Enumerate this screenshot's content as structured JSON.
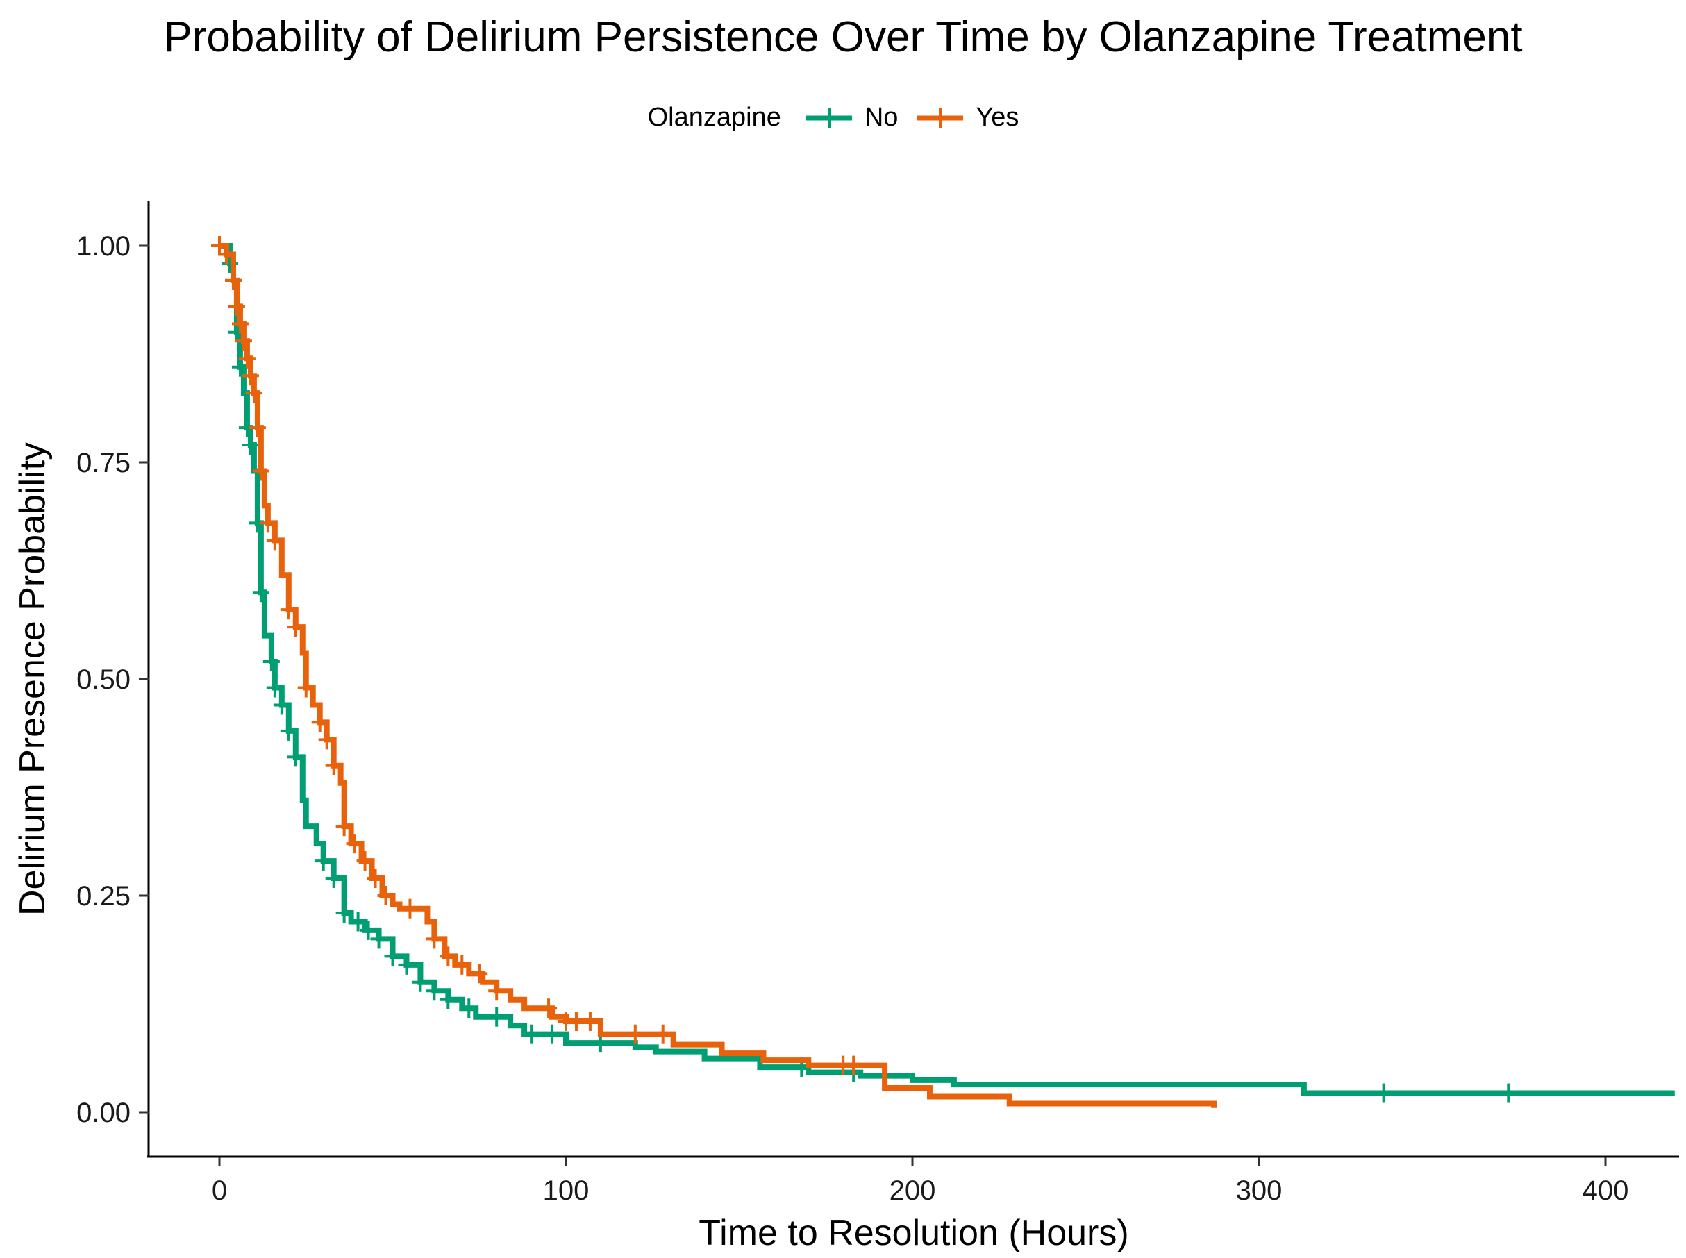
{
  "chart_data": {
    "type": "line",
    "subtype": "kaplan-meier step",
    "title": "Probability of Delirium Persistence Over Time by Olanzapine Treatment",
    "xlabel": "Time to Resolution (Hours)",
    "ylabel": "Delirium Presence Probability",
    "xlim": [
      -20,
      420
    ],
    "ylim": [
      -0.05,
      1.05
    ],
    "x_ticks": [
      0,
      100,
      200,
      300,
      400
    ],
    "x_tick_labels": [
      "0",
      "100",
      "200",
      "300",
      "400"
    ],
    "y_ticks": [
      0,
      0.25,
      0.5,
      0.75,
      1.0
    ],
    "y_tick_labels": [
      "0.00",
      "0.25",
      "0.50",
      "0.75",
      "1.00"
    ],
    "grid": false,
    "legend": {
      "title": "Olanzapine",
      "position": "top"
    },
    "series": [
      {
        "name": "No",
        "color": "#009E73",
        "steps": [
          [
            0,
            1.0
          ],
          [
            3,
            0.98
          ],
          [
            4,
            0.96
          ],
          [
            5,
            0.9
          ],
          [
            6,
            0.86
          ],
          [
            7,
            0.83
          ],
          [
            8,
            0.79
          ],
          [
            9,
            0.77
          ],
          [
            10,
            0.74
          ],
          [
            11,
            0.68
          ],
          [
            12,
            0.6
          ],
          [
            13,
            0.55
          ],
          [
            15,
            0.52
          ],
          [
            16,
            0.49
          ],
          [
            18,
            0.47
          ],
          [
            20,
            0.44
          ],
          [
            22,
            0.41
          ],
          [
            24,
            0.36
          ],
          [
            25,
            0.33
          ],
          [
            28,
            0.31
          ],
          [
            30,
            0.29
          ],
          [
            33,
            0.27
          ],
          [
            36,
            0.23
          ],
          [
            38,
            0.22
          ],
          [
            42,
            0.21
          ],
          [
            46,
            0.2
          ],
          [
            50,
            0.18
          ],
          [
            54,
            0.17
          ],
          [
            58,
            0.15
          ],
          [
            62,
            0.14
          ],
          [
            66,
            0.13
          ],
          [
            70,
            0.12
          ],
          [
            74,
            0.11
          ],
          [
            84,
            0.1
          ],
          [
            88,
            0.09
          ],
          [
            100,
            0.08
          ],
          [
            120,
            0.075
          ],
          [
            126,
            0.07
          ],
          [
            140,
            0.062
          ],
          [
            156,
            0.052
          ],
          [
            170,
            0.046
          ],
          [
            185,
            0.042
          ],
          [
            200,
            0.037
          ],
          [
            212,
            0.032
          ],
          [
            313,
            0.022
          ],
          [
            420,
            0.022
          ]
        ],
        "censor_times": [
          3,
          4,
          5,
          6,
          8,
          9,
          11,
          12,
          15,
          16,
          18,
          20,
          22,
          30,
          33,
          36,
          40,
          43,
          46,
          50,
          54,
          58,
          62,
          66,
          72,
          80,
          90,
          96,
          110,
          168,
          183,
          336,
          372
        ]
      },
      {
        "name": "Yes",
        "color": "#E8620C",
        "steps": [
          [
            0,
            1.0
          ],
          [
            2,
            0.99
          ],
          [
            4,
            0.96
          ],
          [
            5,
            0.93
          ],
          [
            6,
            0.91
          ],
          [
            7,
            0.89
          ],
          [
            8,
            0.87
          ],
          [
            9,
            0.85
          ],
          [
            10,
            0.83
          ],
          [
            11,
            0.79
          ],
          [
            12,
            0.74
          ],
          [
            13,
            0.7
          ],
          [
            14,
            0.68
          ],
          [
            16,
            0.66
          ],
          [
            18,
            0.62
          ],
          [
            20,
            0.58
          ],
          [
            22,
            0.56
          ],
          [
            24,
            0.53
          ],
          [
            25,
            0.49
          ],
          [
            27,
            0.47
          ],
          [
            29,
            0.45
          ],
          [
            31,
            0.43
          ],
          [
            33,
            0.4
          ],
          [
            35,
            0.38
          ],
          [
            36,
            0.33
          ],
          [
            38,
            0.31
          ],
          [
            41,
            0.29
          ],
          [
            44,
            0.27
          ],
          [
            47,
            0.25
          ],
          [
            50,
            0.24
          ],
          [
            52,
            0.235
          ],
          [
            60,
            0.22
          ],
          [
            62,
            0.2
          ],
          [
            65,
            0.18
          ],
          [
            68,
            0.17
          ],
          [
            72,
            0.16
          ],
          [
            76,
            0.15
          ],
          [
            80,
            0.14
          ],
          [
            84,
            0.13
          ],
          [
            88,
            0.12
          ],
          [
            96,
            0.11
          ],
          [
            100,
            0.105
          ],
          [
            110,
            0.09
          ],
          [
            131,
            0.078
          ],
          [
            145,
            0.068
          ],
          [
            157,
            0.06
          ],
          [
            170,
            0.054
          ],
          [
            192,
            0.028
          ],
          [
            205,
            0.018
          ],
          [
            228,
            0.01
          ],
          [
            287,
            0.005
          ]
        ],
        "censor_times": [
          0,
          2,
          4,
          5,
          6,
          7,
          8,
          9,
          10,
          11,
          12,
          14,
          16,
          20,
          22,
          25,
          29,
          31,
          33,
          36,
          39,
          42,
          45,
          48,
          55,
          62,
          66,
          70,
          75,
          80,
          95,
          100,
          103,
          107,
          120,
          128,
          180,
          183
        ]
      }
    ]
  }
}
